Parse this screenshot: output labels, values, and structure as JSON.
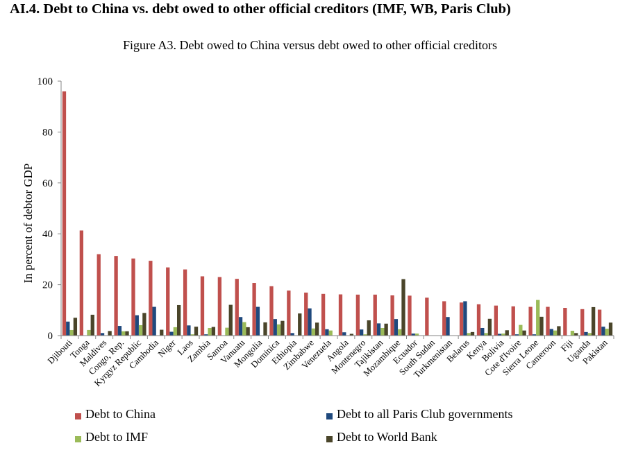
{
  "heading": "AI.4. Debt to China vs. debt owed to other official creditors (IMF, WB, Paris Club)",
  "chart_data": {
    "type": "bar",
    "title": "Figure A3. Debt owed to China versus debt owed to other official creditors",
    "xlabel": "",
    "ylabel": "In percent of debtor GDP",
    "ylim": [
      0,
      100
    ],
    "yticks": [
      0,
      20,
      40,
      60,
      80,
      100
    ],
    "grid": false,
    "legend_position": "bottom",
    "categories": [
      "Djibouti",
      "Tonga",
      "Maldives",
      "Congo, Rep.",
      "Kyrgyz Republic",
      "Cambodia",
      "Niger",
      "Laos",
      "Zambia",
      "Samoa",
      "Vanuatu",
      "Mongolia",
      "Dominica",
      "Ethiopia",
      "Zimbabwe",
      "Venezuela",
      "Angola",
      "Montenegro",
      "Tajikistan",
      "Mozambique",
      "Ecuador",
      "South Sudan",
      "Turkmenistan",
      "Belarus",
      "Kenya",
      "Bolivia",
      "Cote d'Ivoire",
      "Sierra Leone",
      "Cameroon",
      "Fiji",
      "Uganda",
      "Pakistan"
    ],
    "series": [
      {
        "name": "Debt to China",
        "color": "#C0504D",
        "values": [
          96,
          41.3,
          32,
          31.3,
          30.3,
          29.4,
          26.8,
          26,
          23.3,
          23,
          22.3,
          20.7,
          19.4,
          17.7,
          16.9,
          16.4,
          16.2,
          16.1,
          16.1,
          15.8,
          15.7,
          14.9,
          13.5,
          13,
          12.3,
          11.8,
          11.5,
          11.3,
          11.3,
          10.9,
          10.4,
          10.2
        ]
      },
      {
        "name": "Debt to all Paris Club governments",
        "color": "#1F497D",
        "values": [
          5.5,
          0,
          1,
          3.8,
          8,
          11.3,
          1.5,
          4,
          0.5,
          0,
          7.3,
          11.3,
          6.5,
          1,
          10.7,
          2.5,
          1.3,
          2.4,
          4.8,
          6.5,
          0.8,
          0,
          7.3,
          13.5,
          3,
          0.7,
          0.5,
          0.5,
          2.6,
          0,
          1.4,
          3.5
        ]
      },
      {
        "name": "Debt to IMF",
        "color": "#9BBB59",
        "values": [
          2.2,
          2.2,
          0,
          1.7,
          4.1,
          0,
          3.3,
          0.5,
          3,
          3.1,
          5.3,
          0,
          4.4,
          0,
          2.8,
          2,
          0,
          0.5,
          3,
          2.5,
          0.8,
          0,
          0,
          1,
          1,
          0.8,
          4.2,
          14,
          2,
          1.9,
          1,
          2.7
        ]
      },
      {
        "name": "Debt to World Bank",
        "color": "#4A452A",
        "values": [
          7,
          8.2,
          1.8,
          1.7,
          8.9,
          2.3,
          12,
          3.5,
          3.4,
          12.1,
          3.3,
          5.2,
          5.8,
          8.7,
          5.1,
          0,
          0.7,
          6,
          4.7,
          22.2,
          0,
          0,
          0,
          1.4,
          6.6,
          2.1,
          2,
          7.4,
          3.7,
          1,
          11.2,
          5.1
        ]
      }
    ]
  }
}
